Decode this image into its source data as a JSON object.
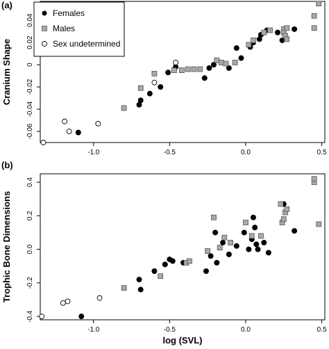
{
  "figure": {
    "xlabel": "log (SVL)"
  },
  "legend": {
    "placement": "top-left",
    "items": [
      {
        "label": "Females",
        "marker": "filled-circle"
      },
      {
        "label": "Males",
        "marker": "grey-square"
      },
      {
        "label": "Sex undetermined",
        "marker": "open-circle"
      }
    ]
  },
  "colors": {
    "female": "#000000",
    "male_fill": "#a9a9a9",
    "undetermined_fill": "#ffffff"
  },
  "chart_data": [
    {
      "type": "scatter",
      "panel_label": "(a)",
      "ylabel": "Cranium Shape",
      "xlabel": "log (SVL)",
      "xlim": [
        -1.35,
        0.52
      ],
      "ylim": [
        -0.07,
        0.057
      ],
      "xticks": [
        "-1.0",
        "-0.5",
        "0.0",
        "0.5"
      ],
      "yticks": [
        "-0.06",
        "-0.04",
        "-0.02",
        "0",
        "0.02",
        "0.04"
      ],
      "series": [
        {
          "name": "Females",
          "points": [
            [
              -1.1,
              -0.061
            ],
            [
              -0.7,
              -0.036
            ],
            [
              -0.69,
              -0.032
            ],
            [
              -0.63,
              -0.026
            ],
            [
              -0.56,
              -0.02
            ],
            [
              -0.51,
              -0.007
            ],
            [
              -0.46,
              -0.002
            ],
            [
              -0.27,
              -0.012
            ],
            [
              -0.24,
              -0.003
            ],
            [
              -0.21,
              0.0
            ],
            [
              -0.11,
              -0.003
            ],
            [
              -0.06,
              0.015
            ],
            [
              -0.03,
              0.006
            ],
            [
              0.03,
              0.016
            ],
            [
              0.05,
              0.02
            ],
            [
              0.09,
              0.023
            ],
            [
              0.1,
              0.027
            ],
            [
              0.14,
              0.031
            ],
            [
              0.21,
              0.029
            ],
            [
              0.24,
              0.022
            ],
            [
              0.32,
              0.032
            ]
          ]
        },
        {
          "name": "Males",
          "points": [
            [
              -0.8,
              -0.039
            ],
            [
              -0.69,
              -0.021
            ],
            [
              -0.6,
              -0.008
            ],
            [
              -0.47,
              -0.005
            ],
            [
              -0.42,
              -0.005
            ],
            [
              -0.38,
              -0.004
            ],
            [
              -0.34,
              -0.004
            ],
            [
              -0.3,
              -0.004
            ],
            [
              -0.19,
              0.004
            ],
            [
              -0.16,
              0.002
            ],
            [
              -0.13,
              0.001
            ],
            [
              -0.07,
              0.002
            ],
            [
              0.02,
              0.018
            ],
            [
              0.05,
              0.022
            ],
            [
              0.12,
              0.029
            ],
            [
              0.16,
              0.031
            ],
            [
              0.25,
              0.032
            ],
            [
              0.25,
              0.029
            ],
            [
              0.26,
              0.026
            ],
            [
              0.27,
              0.033
            ],
            [
              0.27,
              0.023
            ],
            [
              0.45,
              0.033
            ],
            [
              0.45,
              0.044
            ],
            [
              0.48,
              0.055
            ]
          ]
        },
        {
          "name": "Sex undetermined",
          "points": [
            [
              -1.33,
              -0.07
            ],
            [
              -1.19,
              -0.051
            ],
            [
              -1.16,
              -0.06
            ],
            [
              -0.97,
              -0.053
            ],
            [
              -0.6,
              -0.016
            ],
            [
              -0.46,
              0.002
            ]
          ]
        }
      ]
    },
    {
      "type": "scatter",
      "panel_label": "(b)",
      "ylabel": "Trophic Bone Dimensions",
      "xlabel": "log (SVL)",
      "xlim": [
        -1.35,
        0.52
      ],
      "ylim": [
        -0.42,
        0.45
      ],
      "xticks": [
        "-1.0",
        "-0.5",
        "0.0",
        "0.5"
      ],
      "yticks": [
        "-0.4",
        "-0.2",
        "0.0",
        "0.2",
        "0.4"
      ],
      "series": [
        {
          "name": "Females",
          "points": [
            [
              -1.08,
              -0.4
            ],
            [
              -0.7,
              -0.18
            ],
            [
              -0.69,
              -0.24
            ],
            [
              -0.6,
              -0.13
            ],
            [
              -0.53,
              -0.09
            ],
            [
              -0.5,
              -0.06
            ],
            [
              -0.48,
              -0.07
            ],
            [
              -0.41,
              -0.08
            ],
            [
              -0.26,
              -0.13
            ],
            [
              -0.23,
              -0.04
            ],
            [
              -0.19,
              -0.08
            ],
            [
              -0.2,
              0.1
            ],
            [
              -0.15,
              0.04
            ],
            [
              -0.11,
              -0.03
            ],
            [
              -0.06,
              0.02
            ],
            [
              -0.01,
              0.1
            ],
            [
              0.02,
              0.0
            ],
            [
              0.04,
              0.06
            ],
            [
              0.06,
              0.13
            ],
            [
              0.07,
              0.03
            ],
            [
              0.08,
              0.0
            ],
            [
              0.12,
              0.04
            ],
            [
              0.15,
              -0.02
            ],
            [
              0.25,
              0.27
            ],
            [
              0.32,
              0.11
            ],
            [
              0.05,
              0.19
            ]
          ]
        },
        {
          "name": "Males",
          "points": [
            [
              -0.8,
              -0.23
            ],
            [
              -0.56,
              -0.16
            ],
            [
              -0.39,
              -0.08
            ],
            [
              -0.37,
              -0.07
            ],
            [
              -0.25,
              -0.01
            ],
            [
              -0.21,
              0.19
            ],
            [
              -0.17,
              0.01
            ],
            [
              -0.14,
              0.07
            ],
            [
              -0.1,
              0.04
            ],
            [
              0.0,
              0.16
            ],
            [
              0.04,
              0.08
            ],
            [
              0.1,
              0.08
            ],
            [
              0.23,
              0.27
            ],
            [
              0.24,
              0.16
            ],
            [
              0.25,
              0.18
            ],
            [
              0.26,
              0.22
            ],
            [
              0.27,
              0.24
            ],
            [
              0.45,
              0.4
            ],
            [
              0.45,
              0.42
            ],
            [
              0.48,
              0.15
            ]
          ]
        },
        {
          "name": "Sex undetermined",
          "points": [
            [
              -1.34,
              -0.4
            ],
            [
              -1.2,
              -0.32
            ],
            [
              -1.17,
              -0.31
            ],
            [
              -0.96,
              -0.29
            ]
          ]
        }
      ]
    }
  ]
}
